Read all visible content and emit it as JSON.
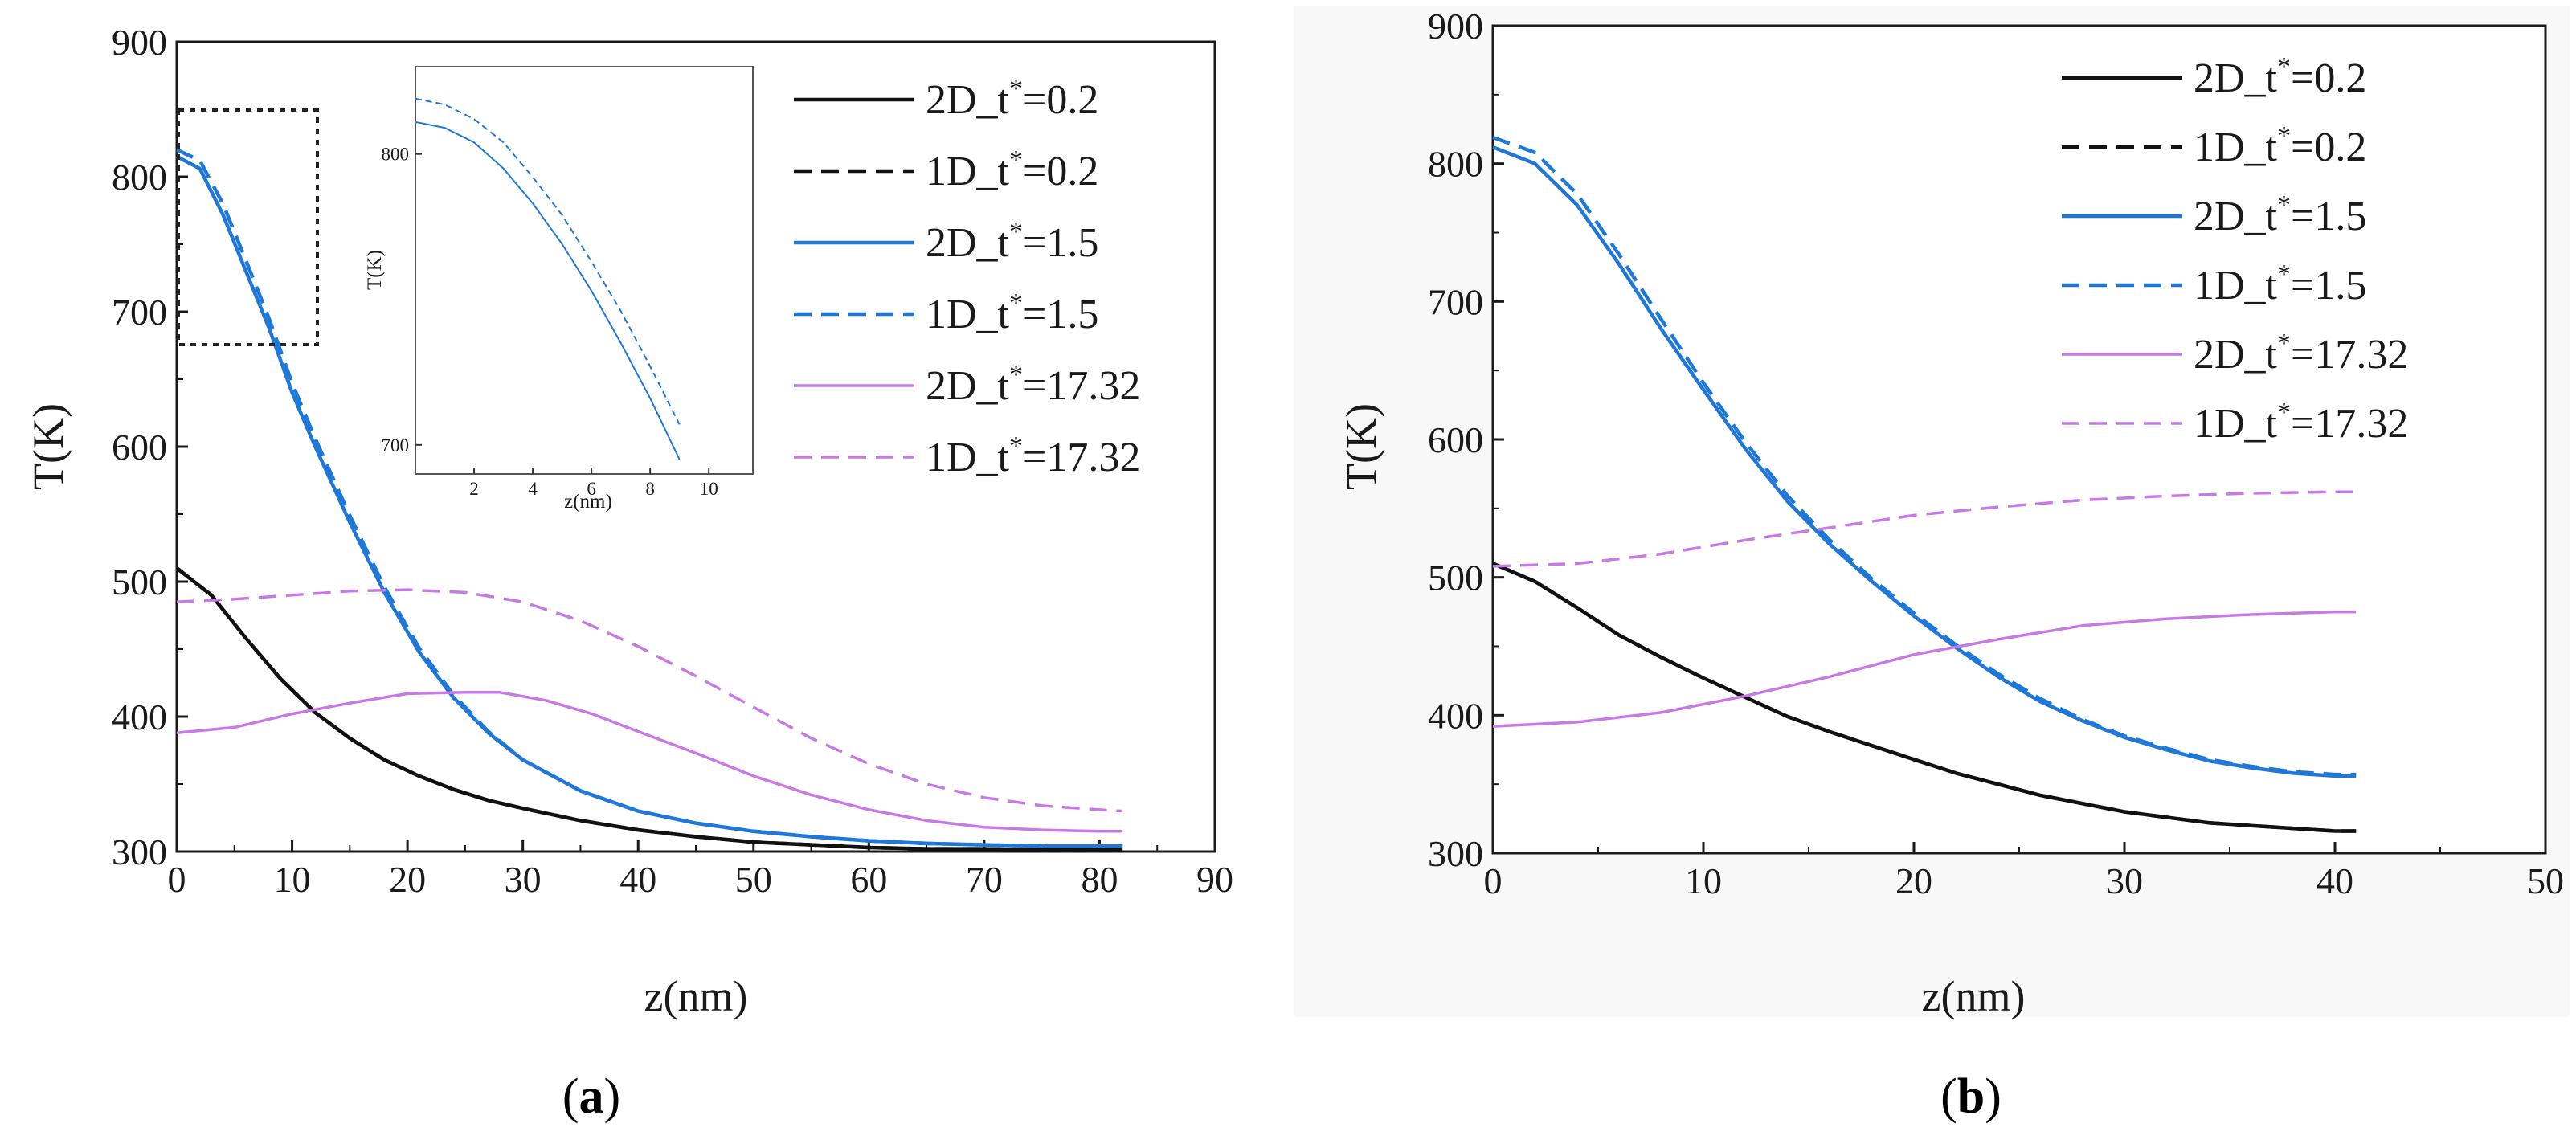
{
  "colors": {
    "black": "#111111",
    "blue": "#1f78d8",
    "violet": "#c77ae3"
  },
  "series_meta": [
    {
      "name": "2D_t*=0.2",
      "prefix": "2D_t",
      "sup": "*",
      "suffix": "=0.2",
      "color": "#111111",
      "dashed": false
    },
    {
      "name": "1D_t*=0.2",
      "prefix": "1D_t",
      "sup": "*",
      "suffix": "=0.2",
      "color": "#111111",
      "dashed": true
    },
    {
      "name": "2D_t*=1.5",
      "prefix": "2D_t",
      "sup": "*",
      "suffix": "=1.5",
      "color": "#1f78d8",
      "dashed": false
    },
    {
      "name": "1D_t*=1.5",
      "prefix": "1D_t",
      "sup": "*",
      "suffix": "=1.5",
      "color": "#1f78d8",
      "dashed": true
    },
    {
      "name": "2D_t*=17.32",
      "prefix": "2D_t",
      "sup": "*",
      "suffix": "=17.32",
      "color": "#c77ae3",
      "dashed": false
    },
    {
      "name": "1D_t*=17.32",
      "prefix": "1D_t",
      "sup": "*",
      "suffix": "=17.32",
      "color": "#c77ae3",
      "dashed": true
    }
  ],
  "chart_data": [
    {
      "id": "a",
      "type": "line",
      "caption": "a",
      "xlabel": "z(nm)",
      "ylabel": "T(K)",
      "xlim": [
        0,
        90
      ],
      "ylim": [
        300,
        900
      ],
      "xticks": [
        0,
        10,
        20,
        30,
        40,
        50,
        60,
        70,
        80,
        90
      ],
      "yticks": [
        300,
        400,
        500,
        600,
        700,
        800,
        900
      ],
      "legend_position": "top-right",
      "series": [
        {
          "name": "2D_t*=0.2",
          "x": [
            0,
            3,
            6,
            9,
            12,
            15,
            18,
            21,
            24,
            27,
            30,
            35,
            40,
            45,
            50,
            55,
            60,
            65,
            70,
            75,
            80,
            82
          ],
          "y": [
            510,
            490,
            458,
            428,
            403,
            384,
            368,
            356,
            346,
            338,
            332,
            323,
            316,
            311,
            307,
            305,
            303,
            302,
            302,
            301,
            301,
            301
          ]
        },
        {
          "name": "1D_t*=0.2",
          "x": [
            0,
            3,
            6,
            9,
            12,
            15,
            18,
            21,
            24,
            27,
            30,
            35,
            40,
            45,
            50,
            55,
            60,
            65,
            70,
            75,
            80,
            82
          ],
          "y": [
            510,
            490,
            458,
            428,
            403,
            384,
            368,
            356,
            346,
            338,
            332,
            323,
            316,
            311,
            307,
            305,
            303,
            302,
            302,
            301,
            301,
            301
          ]
        },
        {
          "name": "2D_t*=1.5",
          "x": [
            0,
            2,
            4,
            6,
            8,
            10,
            12,
            15,
            18,
            21,
            24,
            27,
            30,
            35,
            40,
            45,
            50,
            55,
            60,
            65,
            70,
            75,
            80,
            82
          ],
          "y": [
            815,
            806,
            772,
            730,
            688,
            640,
            600,
            544,
            492,
            448,
            414,
            388,
            368,
            345,
            330,
            321,
            315,
            311,
            308,
            306,
            305,
            304,
            304,
            304
          ]
        },
        {
          "name": "1D_t*=1.5",
          "x": [
            0,
            2,
            4,
            6,
            8,
            10,
            12,
            15,
            18,
            21,
            24,
            27,
            30,
            35,
            40,
            45,
            50,
            55,
            60,
            65,
            70,
            75,
            80,
            82
          ],
          "y": [
            820,
            812,
            780,
            738,
            695,
            647,
            606,
            549,
            496,
            451,
            416,
            389,
            368,
            345,
            330,
            321,
            315,
            311,
            308,
            306,
            305,
            304,
            304,
            304
          ]
        },
        {
          "name": "2D_t*=17.32",
          "x": [
            0,
            5,
            10,
            15,
            20,
            25,
            28,
            32,
            36,
            40,
            45,
            50,
            55,
            60,
            65,
            70,
            75,
            80,
            82
          ],
          "y": [
            388,
            392,
            402,
            410,
            417,
            418,
            418,
            412,
            402,
            389,
            373,
            356,
            342,
            331,
            323,
            318,
            316,
            315,
            315
          ]
        },
        {
          "name": "1D_t*=17.32",
          "x": [
            0,
            5,
            10,
            15,
            20,
            25,
            30,
            35,
            40,
            45,
            50,
            55,
            60,
            65,
            70,
            75,
            80,
            82
          ],
          "y": [
            485,
            487,
            490,
            493,
            494,
            492,
            485,
            471,
            452,
            430,
            407,
            384,
            365,
            350,
            340,
            334,
            331,
            330
          ]
        }
      ],
      "inset": {
        "xlabel": "z(nm)",
        "ylabel": "T(K)",
        "xlim": [
          0,
          11.5
        ],
        "ylim": [
          690,
          830
        ],
        "xticks": [
          2,
          4,
          6,
          8,
          10
        ],
        "yticks": [
          700,
          800
        ],
        "series": [
          {
            "name": "2D_t*=1.5",
            "x": [
              0,
              1,
              2,
              3,
              4,
              5,
              6,
              7,
              8,
              9
            ],
            "y": [
              811,
              809,
              804,
              795,
              783,
              769,
              753,
              735,
              716,
              695
            ]
          },
          {
            "name": "1D_t*=1.5",
            "x": [
              0,
              1,
              2,
              3,
              4,
              5,
              6,
              7,
              8,
              9
            ],
            "y": [
              819,
              817,
              812,
              804,
              792,
              779,
              763,
              746,
              727,
              707
            ]
          }
        ]
      }
    },
    {
      "id": "b",
      "type": "line",
      "caption": "b",
      "xlabel": "z(nm)",
      "ylabel": "T(K)",
      "xlim": [
        0,
        50
      ],
      "ylim": [
        300,
        900
      ],
      "xticks": [
        0,
        10,
        20,
        30,
        40,
        50
      ],
      "yticks": [
        300,
        400,
        500,
        600,
        700,
        800,
        900
      ],
      "legend_position": "top-right",
      "series": [
        {
          "name": "2D_t*=0.2",
          "x": [
            0,
            2,
            4,
            6,
            8,
            10,
            12,
            14,
            16,
            18,
            20,
            22,
            24,
            26,
            28,
            30,
            32,
            34,
            36,
            38,
            40,
            41
          ],
          "y": [
            510,
            497,
            478,
            458,
            442,
            427,
            413,
            399,
            388,
            378,
            368,
            358,
            350,
            342,
            336,
            330,
            326,
            322,
            320,
            318,
            316,
            316
          ]
        },
        {
          "name": "1D_t*=0.2",
          "x": [
            0,
            2,
            4,
            6,
            8,
            10,
            12,
            14,
            16,
            18,
            20,
            22,
            24,
            26,
            28,
            30,
            32,
            34,
            36,
            38,
            40,
            41
          ],
          "y": [
            510,
            497,
            478,
            458,
            442,
            427,
            413,
            399,
            388,
            378,
            368,
            358,
            350,
            342,
            336,
            330,
            326,
            322,
            320,
            318,
            316,
            316
          ]
        },
        {
          "name": "2D_t*=1.5",
          "x": [
            0,
            2,
            4,
            6,
            8,
            10,
            12,
            14,
            16,
            18,
            20,
            22,
            24,
            26,
            28,
            30,
            32,
            34,
            36,
            38,
            40,
            41
          ],
          "y": [
            812,
            800,
            770,
            727,
            680,
            636,
            593,
            555,
            524,
            497,
            472,
            449,
            428,
            410,
            396,
            384,
            375,
            367,
            362,
            358,
            356,
            356
          ]
        },
        {
          "name": "1D_t*=1.5",
          "x": [
            0,
            2,
            4,
            6,
            8,
            10,
            12,
            14,
            16,
            18,
            20,
            22,
            24,
            26,
            28,
            30,
            32,
            34,
            36,
            38,
            40,
            41
          ],
          "y": [
            819,
            808,
            778,
            734,
            687,
            641,
            598,
            559,
            527,
            499,
            474,
            451,
            430,
            412,
            397,
            385,
            376,
            368,
            363,
            359,
            357,
            357
          ]
        },
        {
          "name": "2D_t*=17.32",
          "x": [
            0,
            4,
            8,
            12,
            16,
            20,
            24,
            28,
            32,
            36,
            40,
            41
          ],
          "y": [
            392,
            395,
            402,
            414,
            428,
            444,
            455,
            465,
            470,
            473,
            475,
            475
          ]
        },
        {
          "name": "1D_t*=17.32",
          "x": [
            0,
            4,
            8,
            12,
            16,
            20,
            24,
            28,
            32,
            36,
            40,
            41
          ],
          "y": [
            508,
            510,
            517,
            527,
            536,
            545,
            551,
            556,
            559,
            561,
            562,
            562
          ]
        }
      ]
    }
  ]
}
